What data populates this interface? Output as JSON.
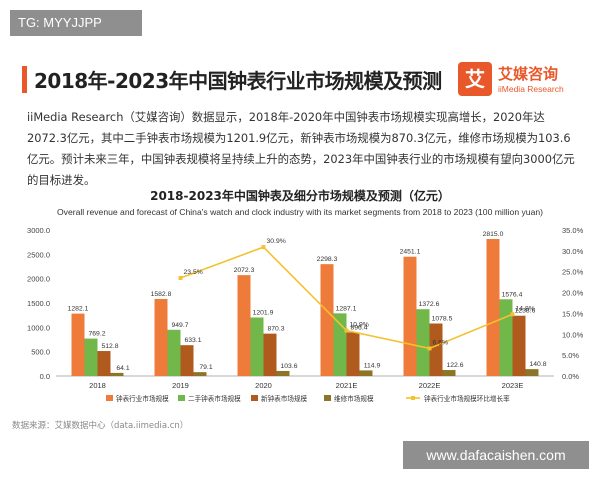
{
  "tag": "TG: MYYJJPP",
  "title": "2018年-2023年中国钟表行业市场规模及预测",
  "logo": {
    "mark": "艾",
    "name_cn": "艾媒咨询",
    "name_en": "iiMedia Research"
  },
  "paragraph": "iiMedia Research（艾媒咨询）数据显示，2018年-2020年中国钟表市场规模实现高增长，2020年达2072.3亿元，其中二手钟表市场规模为1201.9亿元，新钟表市场规模为870.3亿元，维修市场规模为103.6亿元。预计未来三年，中国钟表规模将呈持续上升的态势，2023年中国钟表行业的市场规模有望向3000亿元的目标进发。",
  "source": "数据来源：艾媒数据中心（data.iimedia.cn）",
  "watermark": "www.dafacaishen.com",
  "colors": {
    "accent": "#e8582a",
    "total": "#ef7b3a",
    "secondhand": "#72b74a",
    "new": "#b05a1e",
    "repair": "#8c7526",
    "growth": "#f2c230"
  },
  "chart_data": {
    "type": "bar",
    "title": "2018-2023年中国钟表及细分市场规模及预测（亿元）",
    "subtitle": "Overall revenue and forecast of China's watch and clock industry with its market segments from 2018 to 2023 (100 million yuan)",
    "categories": [
      "2018",
      "2019",
      "2020",
      "2021E",
      "2022E",
      "2023E"
    ],
    "series": [
      {
        "name": "钟表行业市场规模",
        "values": [
          1282.1,
          1582.8,
          2072.3,
          2298.3,
          2451.1,
          2815.0
        ],
        "labels": [
          "1282.1",
          "1582.8",
          "2072.3",
          "2298.3",
          "2451.1",
          "2815.0"
        ]
      },
      {
        "name": "二手钟表市场规模",
        "values": [
          769.2,
          949.7,
          1201.9,
          1287.1,
          1372.6,
          1576.4
        ],
        "labels": [
          "769.2",
          "949.7",
          "1201.9",
          "1287.1",
          "1372.6",
          "1576.4"
        ]
      },
      {
        "name": "新钟表市场规模",
        "values": [
          512.8,
          633.1,
          870.3,
          896.4,
          1078.5,
          1238.6
        ],
        "labels": [
          "512.8",
          "633.1",
          "870.3",
          "896.4",
          "1078.5",
          "1238.6"
        ]
      },
      {
        "name": "维修市场规模",
        "values": [
          64.1,
          79.1,
          103.6,
          114.9,
          122.6,
          140.8
        ],
        "labels": [
          "64.1",
          "79.1",
          "103.6",
          "114.9",
          "122.6",
          "140.8"
        ]
      }
    ],
    "line": {
      "name": "钟表行业市场规模环比增长率",
      "values": [
        null,
        23.5,
        30.9,
        10.9,
        6.6,
        14.8
      ],
      "labels": [
        "",
        "23.5%",
        "30.9%",
        "10.9%",
        "6.6%",
        "14.8%"
      ],
      "axis": "right"
    },
    "ylim": [
      0,
      3000
    ],
    "yticks": [
      "0.0",
      "500.0",
      "1000.0",
      "1500.0",
      "2000.0",
      "2500.0",
      "3000.0"
    ],
    "y2lim": [
      0,
      35
    ],
    "y2ticks": [
      "0.0%",
      "5.0%",
      "10.0%",
      "15.0%",
      "20.0%",
      "25.0%",
      "30.0%",
      "35.0%"
    ],
    "grid": false,
    "legend": "bottom"
  }
}
